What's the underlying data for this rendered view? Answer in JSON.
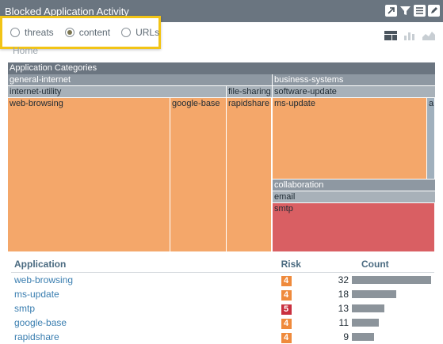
{
  "window": {
    "title": "Blocked Application Activity"
  },
  "toolbar_icons": [
    "open-external-icon",
    "filter-icon",
    "list-icon",
    "edit-icon"
  ],
  "filter": {
    "options": [
      {
        "label": "threats",
        "checked": false
      },
      {
        "label": "content",
        "checked": true
      },
      {
        "label": "URLs",
        "checked": false
      }
    ]
  },
  "breadcrumb": "Home",
  "treemap": {
    "root": "Application Categories",
    "groups": {
      "general_internet": "general-internet",
      "business_systems": "business-systems",
      "internet_utility": "internet-utility",
      "file_sharing": "file-sharing",
      "software_update": "software-update",
      "collaboration": "collaboration",
      "email": "email"
    },
    "leaves": {
      "web_browsing": "web-browsing",
      "google_base": "google-base",
      "rapidshare": "rapidshare",
      "ms_update": "ms-update",
      "truncated": "a.",
      "smtp": "smtp"
    }
  },
  "table": {
    "headers": {
      "application": "Application",
      "risk": "Risk",
      "count": "Count"
    },
    "max_count": 32,
    "rows": [
      {
        "application": "web-browsing",
        "risk": "4",
        "count": "32",
        "value": 32
      },
      {
        "application": "ms-update",
        "risk": "4",
        "count": "18",
        "value": 18
      },
      {
        "application": "smtp",
        "risk": "5",
        "count": "13",
        "value": 13
      },
      {
        "application": "google-base",
        "risk": "4",
        "count": "11",
        "value": 11
      },
      {
        "application": "rapidshare",
        "risk": "4",
        "count": "9",
        "value": 9
      }
    ]
  },
  "colors": {
    "titlebar": "#6a7580",
    "highlight": "#f2c416",
    "leaf_orange": "#f4a76a",
    "leaf_red": "#d95f63",
    "risk4": "#ef8a3c",
    "risk5": "#c9303f",
    "bar": "#8c949b"
  }
}
